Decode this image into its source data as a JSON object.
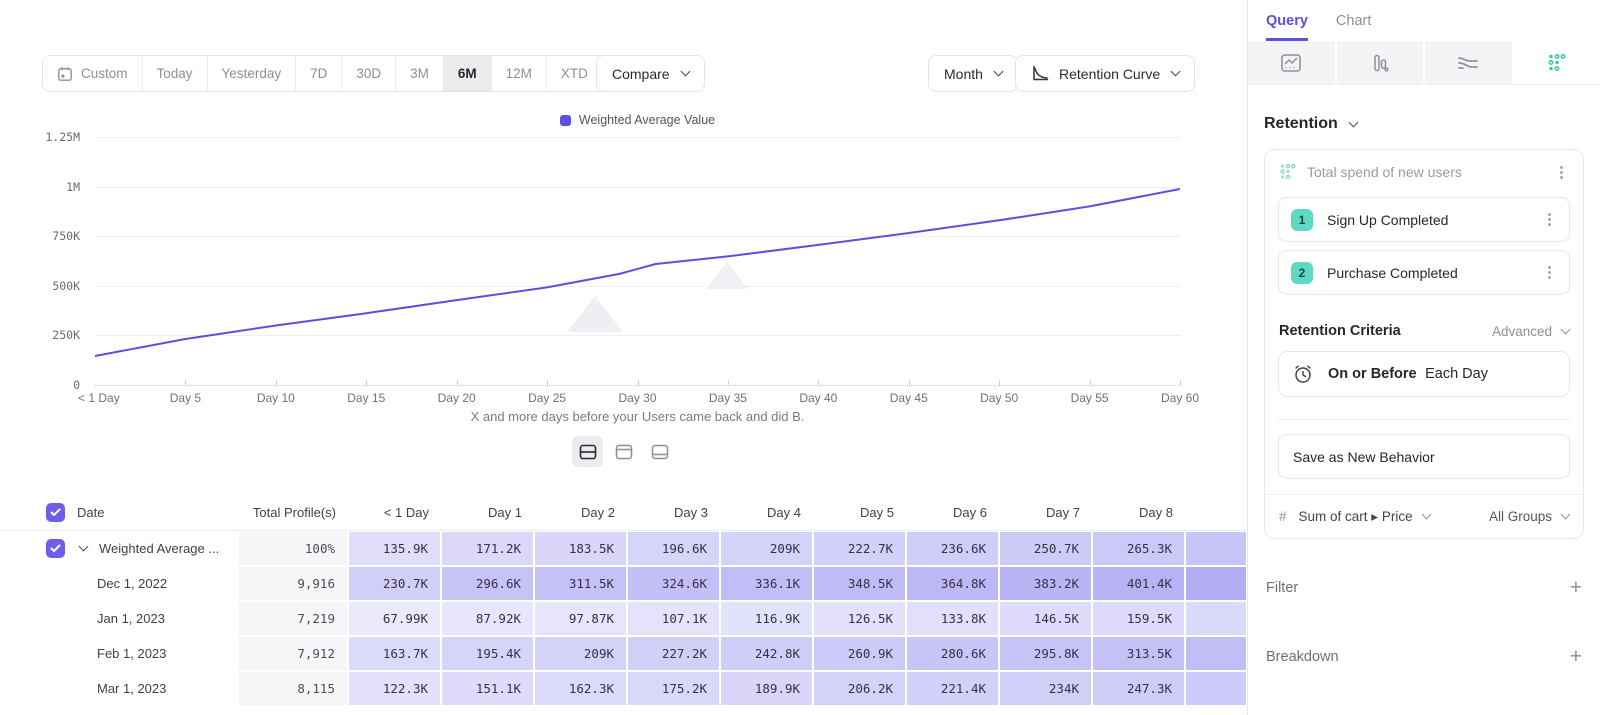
{
  "toolbar": {
    "ranges": [
      "Custom",
      "Today",
      "Yesterday",
      "7D",
      "30D",
      "3M",
      "6M",
      "12M",
      "XTD"
    ],
    "selected": "6M",
    "compare": "Compare",
    "granularity": "Month",
    "chart_type": "Retention Curve"
  },
  "chart_data": {
    "type": "line",
    "series": [
      {
        "name": "Weighted Average Value",
        "x_days": [
          0,
          5,
          10,
          15,
          20,
          25,
          29,
          31,
          35,
          40,
          45,
          50,
          55,
          60
        ],
        "values": [
          146000,
          232000,
          300000,
          362000,
          428000,
          492000,
          560000,
          610000,
          648000,
          706000,
          766000,
          830000,
          900000,
          988000
        ]
      }
    ],
    "x_tick_labels": [
      "< 1 Day",
      "Day 5",
      "Day 10",
      "Day 15",
      "Day 20",
      "Day 25",
      "Day 30",
      "Day 35",
      "Day 40",
      "Day 45",
      "Day 50",
      "Day 55",
      "Day 60"
    ],
    "x_tick_days": [
      0,
      5,
      10,
      15,
      20,
      25,
      30,
      35,
      40,
      45,
      50,
      55,
      60
    ],
    "y_tick_labels": [
      "1.25M",
      "1M",
      "750K",
      "500K",
      "250K",
      "0"
    ],
    "ylim": [
      0,
      1250000
    ],
    "xlabel_caption": "X and more days before your Users came back and did B.",
    "legend_position": "top-center",
    "grid": true,
    "line_color": "#5b50e0"
  },
  "table": {
    "columns": [
      "Date",
      "Total Profile(s)",
      "< 1 Day",
      "Day 1",
      "Day 2",
      "Day 3",
      "Day 4",
      "Day 5",
      "Day 6",
      "Day 7",
      "Day 8"
    ],
    "rows": [
      {
        "label": "Weighted Average ...",
        "checked": true,
        "expandable": true,
        "total": "100%",
        "cells": [
          "135.9K",
          "171.2K",
          "183.5K",
          "196.6K",
          "209K",
          "222.7K",
          "236.6K",
          "250.7K",
          "265.3K"
        ]
      },
      {
        "label": "Dec 1, 2022",
        "total": "9,916",
        "cells": [
          "230.7K",
          "296.6K",
          "311.5K",
          "324.6K",
          "336.1K",
          "348.5K",
          "364.8K",
          "383.2K",
          "401.4K"
        ]
      },
      {
        "label": "Jan 1, 2023",
        "total": "7,219",
        "cells": [
          "67.99K",
          "87.92K",
          "97.87K",
          "107.1K",
          "116.9K",
          "126.5K",
          "133.8K",
          "146.5K",
          "159.5K"
        ]
      },
      {
        "label": "Feb 1, 2023",
        "total": "7,912",
        "cells": [
          "163.7K",
          "195.4K",
          "209K",
          "227.2K",
          "242.8K",
          "260.9K",
          "280.6K",
          "295.8K",
          "313.5K"
        ]
      },
      {
        "label": "Mar 1, 2023",
        "total": "8,115",
        "cells": [
          "122.3K",
          "151.1K",
          "162.3K",
          "175.2K",
          "189.9K",
          "206.2K",
          "221.4K",
          "234K",
          "247.3K"
        ]
      }
    ]
  },
  "panel": {
    "tabs": [
      {
        "label": "Query",
        "active": true
      },
      {
        "label": "Chart",
        "active": false
      }
    ],
    "chart_type_icons": [
      "line-chart-icon",
      "bar-chart-icon",
      "flow-chart-icon",
      "retention-dots-icon"
    ],
    "selected_chart_type_icon": "retention-dots-icon",
    "section_title": "Retention",
    "card": {
      "title": "Total spend of new users",
      "events": [
        {
          "index": "1",
          "label": "Sign Up Completed"
        },
        {
          "index": "2",
          "label": "Purchase Completed"
        }
      ],
      "criteria_label": "Retention Criteria",
      "criteria_mode": "Advanced",
      "when_mode": "On or Before",
      "when_value": "Each Day",
      "save_label": "Save as New Behavior",
      "measure_prefix": "#",
      "measure": "Sum of cart ▸ Price",
      "groups": "All Groups"
    },
    "filter_label": "Filter",
    "breakdown_label": "Breakdown"
  },
  "icons": [
    "calendar-icon",
    "retention-curve-icon",
    "chevron-down-icon",
    "checkbox-check-icon",
    "split-view-icon",
    "chart-view-icon",
    "table-view-icon",
    "line-chart-icon",
    "bar-chart-icon",
    "flow-chart-icon",
    "retention-dots-icon",
    "kebab-menu-icon",
    "alarm-clock-icon",
    "plus-icon"
  ],
  "colors": {
    "accent": "#5b50e0",
    "cell_purple": "#6258e8",
    "teal": "#35c4ae",
    "badge_teal": "#5fd9c4",
    "selected_segment_bg": "#ececef"
  }
}
